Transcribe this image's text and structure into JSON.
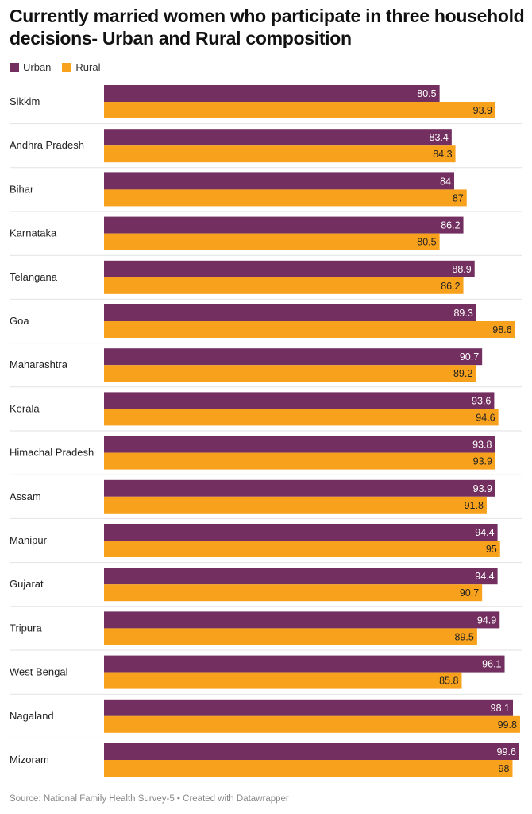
{
  "chart_data": {
    "type": "bar",
    "orientation": "horizontal",
    "title": "Currently married women who participate in three household decisions- Urban and Rural composition",
    "categories": [
      "Sikkim",
      "Andhra Pradesh",
      "Bihar",
      "Karnataka",
      "Telangana",
      "Goa",
      "Maharashtra",
      "Kerala",
      "Himachal Pradesh",
      "Assam",
      "Manipur",
      "Gujarat",
      "Tripura",
      "West Bengal",
      "Nagaland",
      "Mizoram"
    ],
    "series": [
      {
        "name": "Urban",
        "color": "#722f5f",
        "values": [
          80.5,
          83.4,
          84,
          86.2,
          88.9,
          89.3,
          90.7,
          93.6,
          93.8,
          93.9,
          94.4,
          94.4,
          94.9,
          96.1,
          98.1,
          99.6
        ]
      },
      {
        "name": "Rural",
        "color": "#f8a11d",
        "values": [
          93.9,
          84.3,
          87,
          80.5,
          86.2,
          98.6,
          89.2,
          94.6,
          93.9,
          91.8,
          95,
          90.7,
          89.5,
          85.8,
          99.8,
          98
        ]
      }
    ],
    "xlim": [
      0,
      100
    ],
    "legend_position": "top-left",
    "grid": false
  },
  "footer": "Source: National Family Health Survey-5 • Created with Datawrapper"
}
